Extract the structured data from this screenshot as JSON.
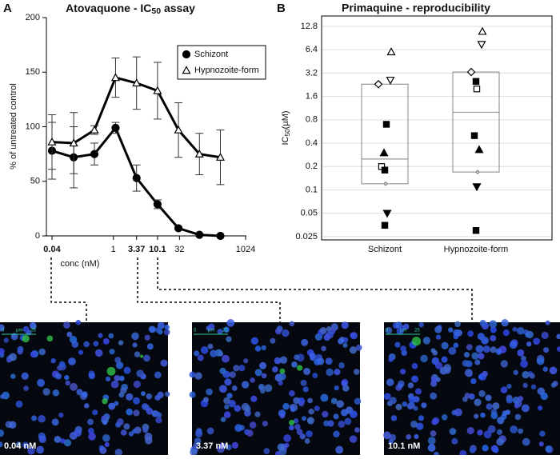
{
  "chart_data": [
    {
      "type": "line",
      "panel": "A",
      "title": {
        "text": "Atovaquone - IC",
        "sub": "50",
        "tail": " assay"
      },
      "x_label": "conc (nM)",
      "y_label": "% of untreated control",
      "xscale": "log",
      "xlim": [
        0.04,
        1024
      ],
      "ylim": [
        0,
        200
      ],
      "xticks": [
        0.04,
        1,
        3.37,
        10.1,
        32,
        1024
      ],
      "xticks_bold": [
        true,
        false,
        true,
        true,
        false,
        false
      ],
      "yticks": [
        0,
        50,
        100,
        150,
        200
      ],
      "x": [
        0.04,
        0.125,
        0.37,
        1.12,
        3.37,
        10.1,
        30.3,
        91,
        273
      ],
      "legend": "upper-right",
      "series": [
        {
          "name": "Schizont",
          "marker": "circle-filled",
          "color": "#000000",
          "values": [
            78,
            72,
            75,
            99,
            53,
            29,
            7,
            1,
            0
          ],
          "errors": [
            26,
            28,
            10,
            5,
            12,
            4,
            1,
            0,
            0
          ]
        },
        {
          "name": "Hypnozoite-form",
          "marker": "triangle-up-open",
          "color": "#000000",
          "values": [
            86,
            85,
            97,
            145,
            140,
            133,
            97,
            75,
            72
          ],
          "errors": [
            25,
            28,
            4,
            18,
            24,
            26,
            25,
            19,
            25
          ]
        }
      ]
    },
    {
      "type": "box-scatter",
      "panel": "B",
      "title": "Primaquine - reproducibility",
      "y_label": {
        "text": "IC",
        "sub": "50",
        "tail": "(µM)"
      },
      "yscale": "log",
      "ylim": [
        0.0227,
        17.4
      ],
      "grid": true,
      "yticks": [
        0.025,
        0.05,
        0.1,
        0.2,
        0.4,
        0.8,
        1.6,
        3.2,
        6.4,
        12.8
      ],
      "categories": [
        "Schizont",
        "Hypnozoite-form"
      ],
      "box": {
        "q1": [
          0.12,
          0.17
        ],
        "median": [
          0.25,
          1.0
        ],
        "q3": [
          2.3,
          3.3
        ],
        "color": "#999999"
      },
      "series": [
        {
          "marker": "triangle-up-open",
          "values": [
            6.0,
            11
          ]
        },
        {
          "marker": "diamond-open",
          "values": [
            2.3,
            3.3
          ]
        },
        {
          "marker": "triangle-down-open",
          "values": [
            2.6,
            7.5
          ]
        },
        {
          "marker": "square-filled",
          "values": [
            0.7,
            2.5
          ]
        },
        {
          "marker": "square-open",
          "values": [
            0.2,
            2.0
          ]
        },
        {
          "marker": "square-filled",
          "values": [
            0.18,
            0.5
          ]
        },
        {
          "marker": "triangle-up-filled",
          "values": [
            0.3,
            0.33
          ]
        },
        {
          "marker": "diamond-small",
          "values": [
            0.12,
            0.17
          ]
        },
        {
          "marker": "triangle-down-filled",
          "values": [
            0.05,
            0.11
          ]
        },
        {
          "marker": "square-filled",
          "values": [
            0.035,
            0.03
          ]
        }
      ]
    }
  ],
  "images": [
    {
      "label": "0.04 nM",
      "scale_bar": [
        "0",
        "µm",
        "25"
      ]
    },
    {
      "label": "3.37 nM",
      "scale_bar": [
        "0",
        "µm",
        "25"
      ]
    },
    {
      "label": "10.1 nM",
      "scale_bar": [
        "0",
        "µm",
        "25"
      ]
    }
  ]
}
